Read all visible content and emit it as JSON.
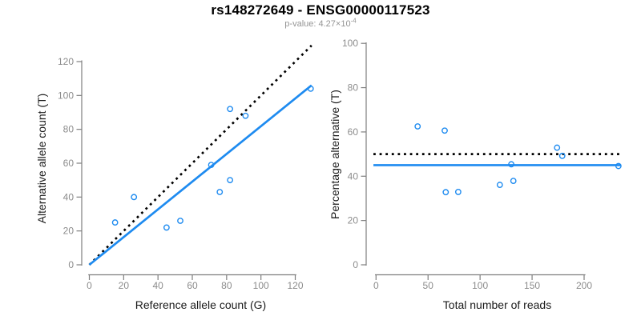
{
  "header": {
    "title": "rs148272649 - ENSG00000117523",
    "pvalue_prefix": "p-value: 4.27×10",
    "pvalue_exponent": "-4"
  },
  "colors": {
    "accent_blue": "#1E8BF0",
    "identity_black": "#000000",
    "axis_gray": "#7f7f7f",
    "tick_label_gray": "#8c8c8c",
    "axis_title_dark": "#1a1a1a"
  },
  "chart_data": [
    {
      "type": "scatter",
      "name": "allele-count-scatter",
      "title": "rs148272649 - ENSG00000117523",
      "subtitle": "p-value: 4.27×10^-4",
      "xlabel": "Reference allele count (G)",
      "ylabel": "Alternative allele count (T)",
      "xlim": [
        0,
        130
      ],
      "ylim": [
        0,
        130
      ],
      "xticks": [
        0,
        20,
        40,
        60,
        80,
        100,
        120
      ],
      "yticks": [
        0,
        20,
        40,
        60,
        80,
        100,
        120
      ],
      "grid": false,
      "legend": "none",
      "points": [
        [
          15,
          25
        ],
        [
          26,
          40
        ],
        [
          45,
          22
        ],
        [
          53,
          26
        ],
        [
          71,
          59
        ],
        [
          76,
          43
        ],
        [
          82,
          50
        ],
        [
          82,
          92
        ],
        [
          91,
          88
        ],
        [
          129,
          104
        ]
      ],
      "lines": [
        {
          "name": "identity-line",
          "style": "dotted",
          "color_key": "identity_black",
          "x1": 0,
          "y1": 0,
          "x2": 129.5,
          "y2": 129.5
        },
        {
          "name": "fit-line",
          "style": "solid",
          "color_key": "accent_blue",
          "x1": 0,
          "y1": 0,
          "x2": 129.5,
          "y2": 106
        }
      ]
    },
    {
      "type": "scatter",
      "name": "percentage-reads-scatter",
      "xlabel": "Total number of reads",
      "ylabel": "Percentage alternative (T)",
      "xlim": [
        0,
        240
      ],
      "ylim": [
        0,
        100
      ],
      "xticks": [
        0,
        50,
        100,
        150,
        200
      ],
      "yticks": [
        0,
        20,
        40,
        60,
        80,
        100
      ],
      "grid": false,
      "legend": "none",
      "points": [
        [
          40,
          62.5
        ],
        [
          66,
          60.6
        ],
        [
          67,
          32.8
        ],
        [
          79,
          32.9
        ],
        [
          119,
          36.1
        ],
        [
          130,
          45.4
        ],
        [
          132,
          37.9
        ],
        [
          174,
          52.9
        ],
        [
          179,
          49.2
        ],
        [
          233,
          44.6
        ]
      ],
      "lines": [
        {
          "name": "fifty-percent-line",
          "style": "dotted",
          "color_key": "identity_black",
          "x1": -2.5,
          "y1": 50,
          "x2": 235.5,
          "y2": 50
        },
        {
          "name": "mean-percentage-line",
          "style": "solid",
          "color_key": "accent_blue",
          "x1": -2.5,
          "y1": 45,
          "x2": 235.5,
          "y2": 45
        }
      ]
    }
  ]
}
